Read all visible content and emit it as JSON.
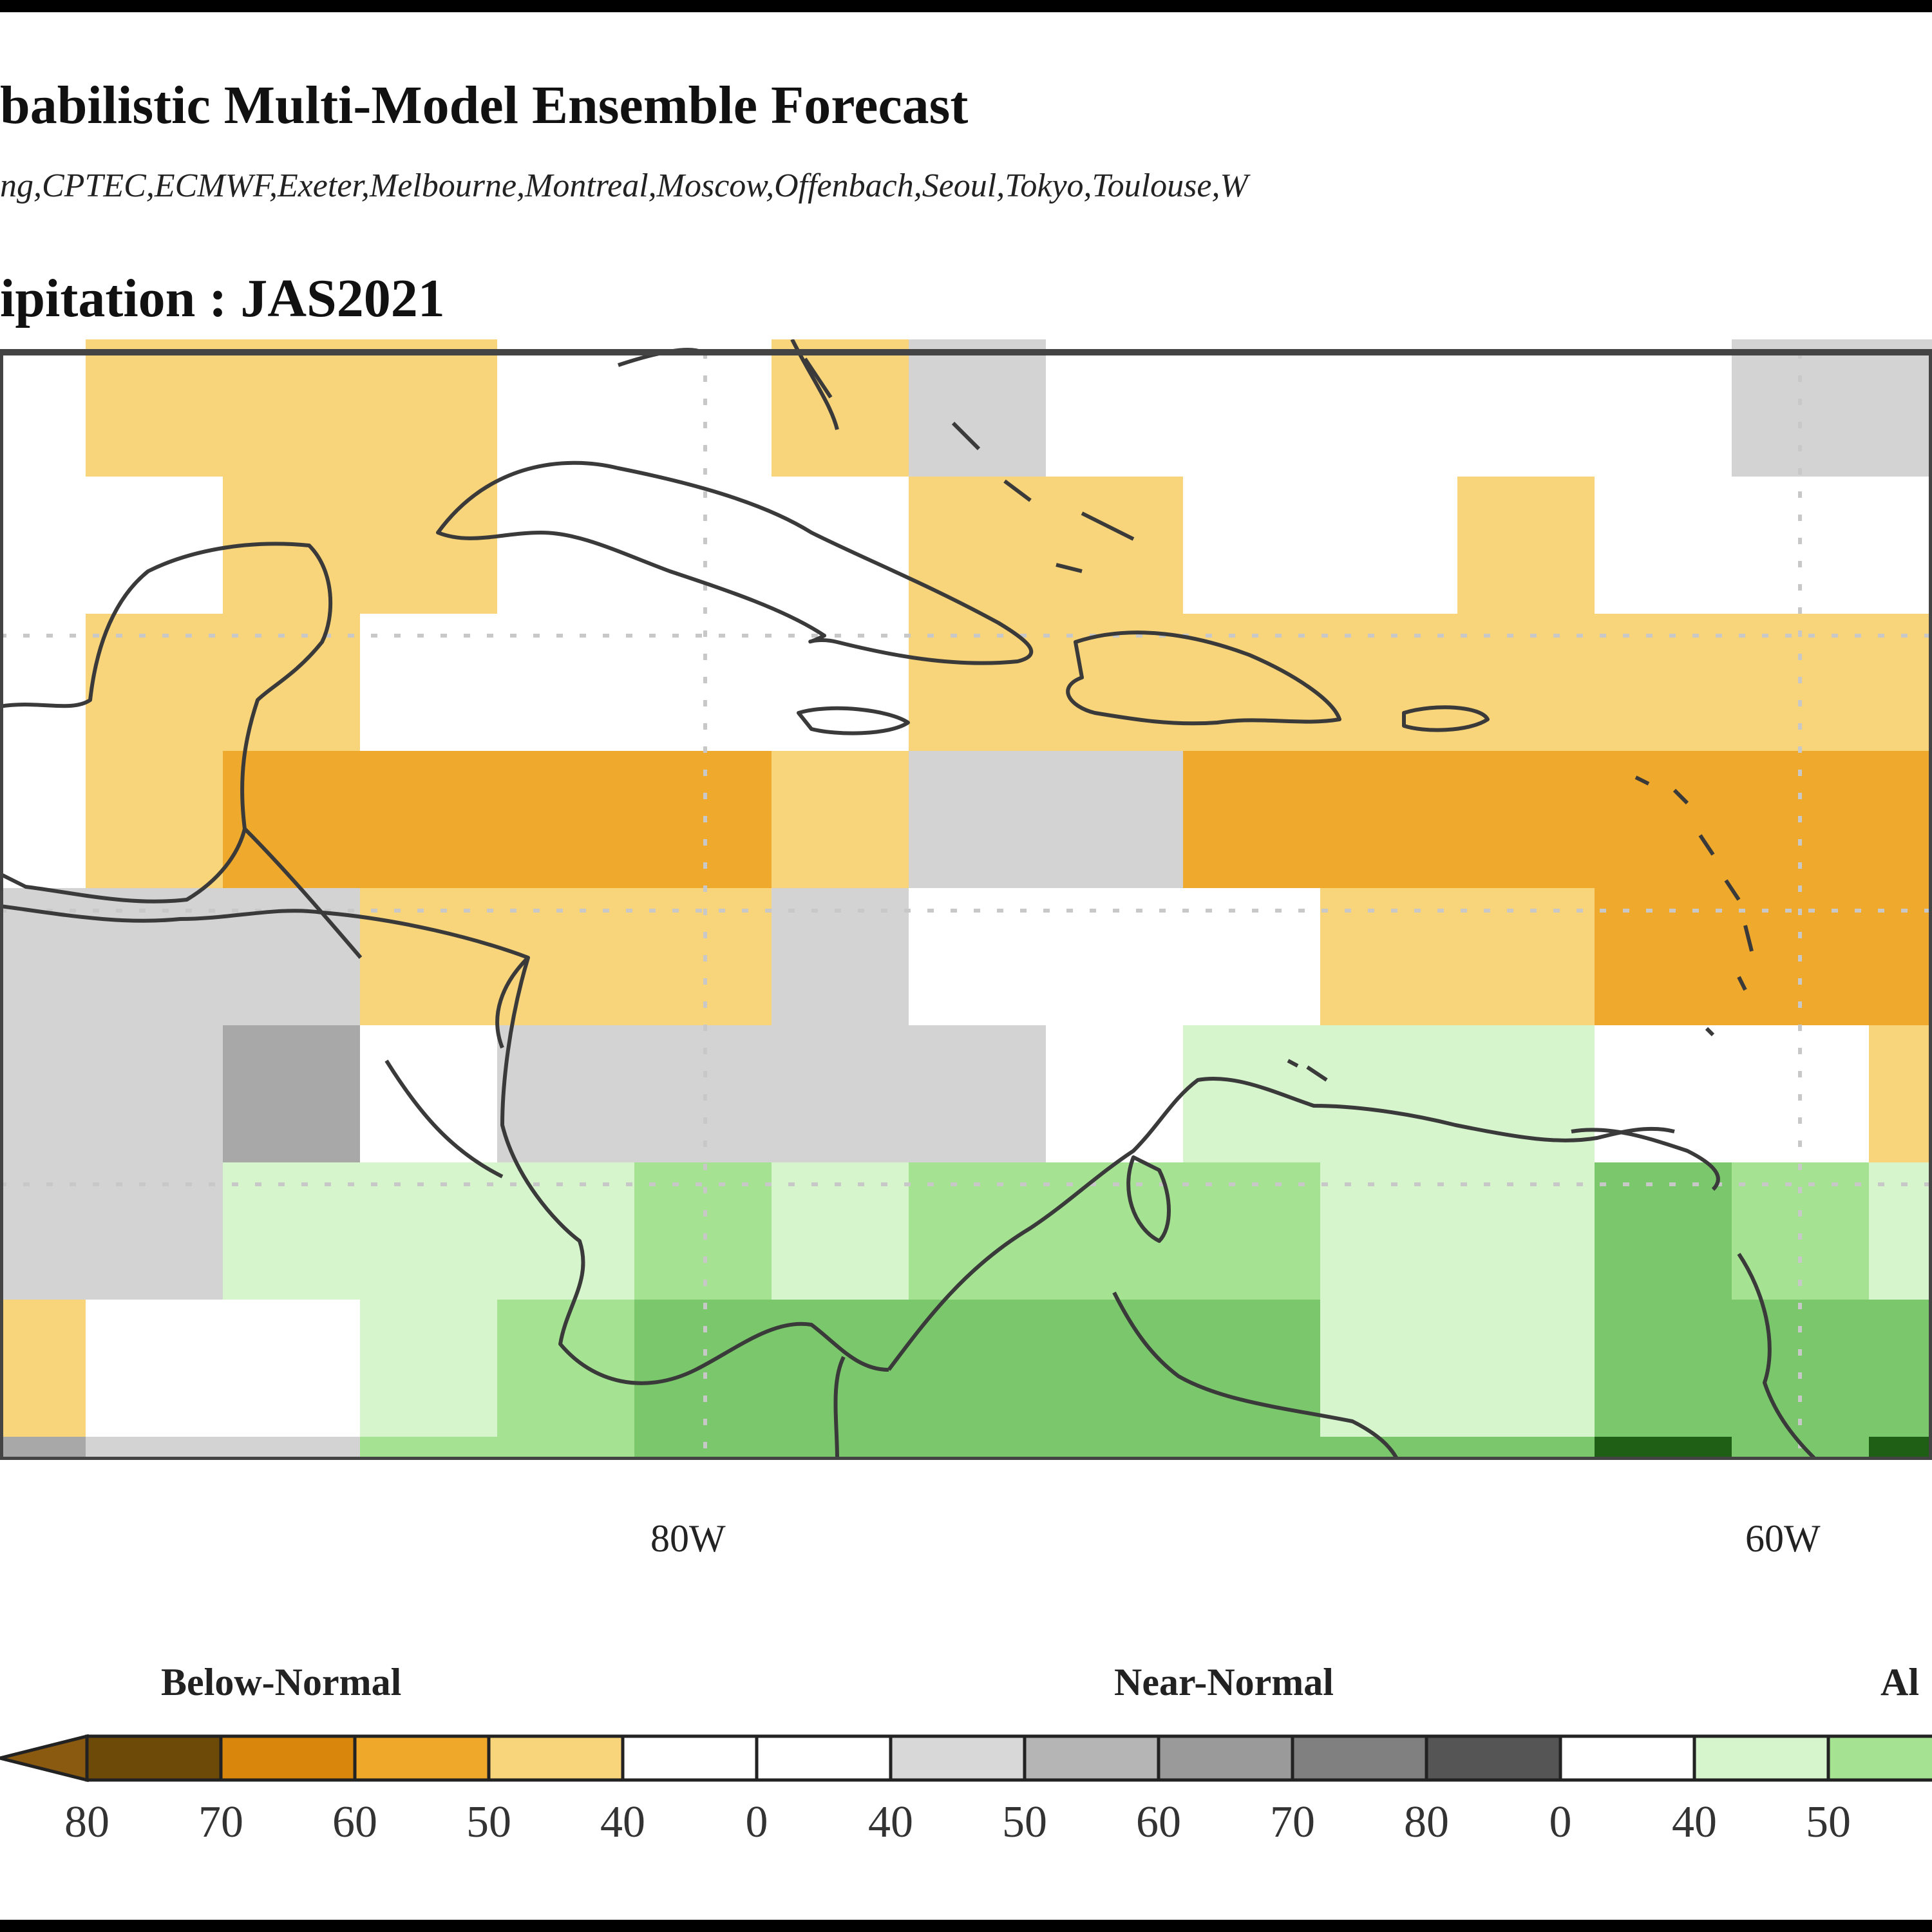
{
  "title": {
    "main": "babilistic Multi-Model Ensemble Forecast",
    "models": "ng,CPTEC,ECMWF,Exeter,Melbourne,Montreal,Moscow,Offenbach,Seoul,Tokyo,Toulouse,W",
    "variable": "ipitation : JAS2021"
  },
  "map": {
    "longitude_labels": [
      "80W",
      "60W"
    ],
    "region": "Caribbean / Central America",
    "colors": {
      "below_50": "#f8d47a",
      "below_60": "#efa92c",
      "near_40": "#d3d3d3",
      "near_60": "#a8a8a8",
      "above_40": "#d7f5cc",
      "above_50": "#a5e292",
      "above_60": "#7bc86c",
      "above_80": "#1f5f15"
    },
    "grid_categories": [
      [
        "W",
        "B50",
        "B50",
        "B50",
        "W",
        "W",
        "B50",
        "N40",
        "W",
        "W",
        "W",
        "W",
        "W",
        "N40",
        "N40"
      ],
      [
        "W",
        "W",
        "B50",
        "B50",
        "W",
        "W",
        "W",
        "B50",
        "B50",
        "W",
        "W",
        "B50",
        "W",
        "W",
        "W"
      ],
      [
        "W",
        "B50",
        "B50",
        "W",
        "W",
        "W",
        "W",
        "B50",
        "B50",
        "B50",
        "B50",
        "B50",
        "B50",
        "B50",
        "B50"
      ],
      [
        "W",
        "B50",
        "B60",
        "B60",
        "B60",
        "B60",
        "B50",
        "N40",
        "N40",
        "B60",
        "B60",
        "B60",
        "B60",
        "B60",
        "B60"
      ],
      [
        "N40",
        "N40",
        "N40",
        "B50",
        "B50",
        "B50",
        "N40",
        "W",
        "W",
        "W",
        "B50",
        "B50",
        "B60",
        "B60",
        "B60"
      ],
      [
        "N40",
        "N40",
        "N60",
        "W",
        "N40",
        "N40",
        "N40",
        "N40",
        "W",
        "A40",
        "A40",
        "A40",
        "W",
        "W",
        "B50"
      ],
      [
        "N40",
        "N40",
        "A40",
        "A40",
        "A40",
        "A50",
        "A40",
        "A50",
        "A50",
        "A50",
        "A40",
        "A40",
        "A60",
        "A50",
        "A40"
      ],
      [
        "B50",
        "W",
        "W",
        "A40",
        "A50",
        "A60",
        "A60",
        "A60",
        "A60",
        "A60",
        "A40",
        "A40",
        "A60",
        "A60",
        "A60"
      ],
      [
        "N60",
        "N40",
        "N40",
        "A50",
        "A50",
        "A60",
        "A60",
        "A60",
        "A60",
        "A60",
        "A60",
        "A60",
        "A80",
        "A60",
        "A80"
      ]
    ]
  },
  "legend": {
    "categories": [
      "Below-Normal",
      "Near-Normal",
      "Al"
    ],
    "tick_labels": [
      "80",
      "70",
      "60",
      "50",
      "40",
      "0",
      "40",
      "50",
      "60",
      "70",
      "80",
      "0",
      "40",
      "50"
    ],
    "swatches": [
      "#6e4a08",
      "#d9860c",
      "#f0a82a",
      "#f8d47a",
      "#ffffff",
      "#ffffff",
      "#d8d8d8",
      "#b5b5b5",
      "#9a9a9a",
      "#808080",
      "#555555",
      "#ffffff",
      "#d7f5cc",
      "#a5e292"
    ]
  }
}
